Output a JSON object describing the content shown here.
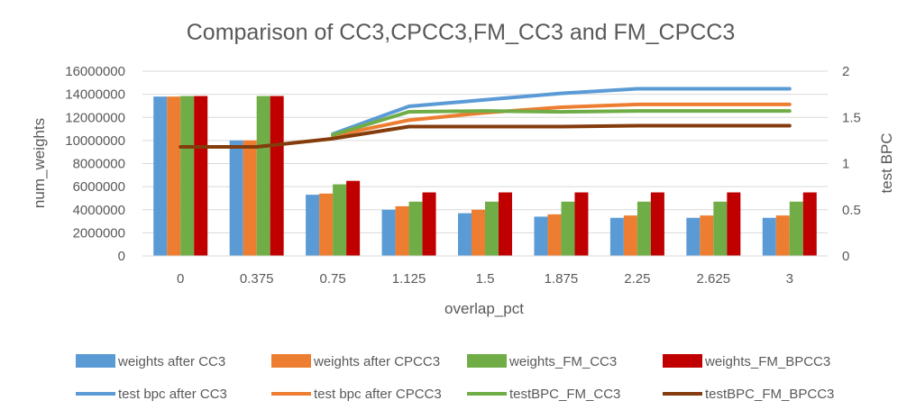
{
  "chart_data": {
    "type": "bar",
    "title": "Comparison of CC3,CPCC3,FM_CC3 and FM_CPCC3",
    "xlabel": "overlap_pct",
    "ylabel": "num_weights",
    "y2label": "test BPC",
    "categories": [
      "0",
      "0.375",
      "0.75",
      "1.125",
      "1.5",
      "1.875",
      "2.25",
      "2.625",
      "3"
    ],
    "ylim": [
      0,
      16000000
    ],
    "y2lim": [
      0,
      2
    ],
    "yticks": [
      "0",
      "2000000",
      "4000000",
      "6000000",
      "8000000",
      "10000000",
      "12000000",
      "14000000",
      "16000000"
    ],
    "y2ticks": [
      "0",
      "0.5",
      "1",
      "1.5",
      "2"
    ],
    "grid": true,
    "legend_position": "bottom",
    "bar_series": [
      {
        "name": "weights after CC3",
        "color": "#5B9BD5",
        "values": [
          13800000,
          10000000,
          5300000,
          4000000,
          3700000,
          3400000,
          3300000,
          3300000,
          3300000
        ]
      },
      {
        "name": "weights after CPCC3",
        "color": "#ED7D31",
        "values": [
          13800000,
          10000000,
          5400000,
          4300000,
          4000000,
          3600000,
          3500000,
          3500000,
          3500000
        ]
      },
      {
        "name": "weights_FM_CC3",
        "color": "#70AD47",
        "values": [
          13850000,
          13850000,
          6200000,
          4700000,
          4700000,
          4700000,
          4700000,
          4700000,
          4700000
        ]
      },
      {
        "name": "weights_FM_BPCC3",
        "color": "#C00000",
        "values": [
          13850000,
          13850000,
          6500000,
          5500000,
          5500000,
          5500000,
          5500000,
          5500000,
          5500000
        ]
      }
    ],
    "line_series": [
      {
        "name": "test bpc after CC3",
        "color": "#5B9BD5",
        "values": [
          null,
          null,
          1.32,
          1.62,
          1.69,
          1.76,
          1.81,
          1.81,
          1.81
        ]
      },
      {
        "name": "test bpc after CPCC3",
        "color": "#ED7D31",
        "values": [
          null,
          null,
          1.3,
          1.47,
          1.55,
          1.61,
          1.64,
          1.64,
          1.64
        ]
      },
      {
        "name": "testBPC_FM_CC3",
        "color": "#70AD47",
        "values": [
          null,
          null,
          1.31,
          1.56,
          1.57,
          1.56,
          1.57,
          1.57,
          1.57
        ]
      },
      {
        "name": "testBPC_FM_BPCC3",
        "color": "#843C0C",
        "values": [
          1.18,
          1.18,
          1.27,
          1.4,
          1.4,
          1.4,
          1.41,
          1.41,
          1.41
        ]
      }
    ]
  }
}
